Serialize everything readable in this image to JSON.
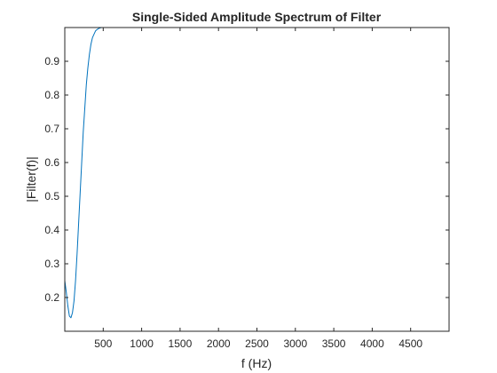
{
  "chart_data": {
    "type": "line",
    "title": "Single-Sided Amplitude Spectrum of Filter",
    "xlabel": "f (Hz)",
    "ylabel": "|Filter(f)|",
    "xlim": [
      0,
      5000
    ],
    "ylim": [
      0.1,
      1.0
    ],
    "xticks": [
      500,
      1000,
      1500,
      2000,
      2500,
      3000,
      3500,
      4000,
      4500
    ],
    "xtick_labels": [
      "500",
      "1000",
      "1500",
      "2000",
      "2500",
      "3000",
      "3500",
      "4000",
      "4500"
    ],
    "yticks": [
      0.2,
      0.3,
      0.4,
      0.5,
      0.6,
      0.7,
      0.8,
      0.9
    ],
    "ytick_labels": [
      "0.2",
      "0.3",
      "0.4",
      "0.5",
      "0.6",
      "0.7",
      "0.8",
      "0.9"
    ],
    "grid": false,
    "legend": "none",
    "colors": {
      "line": "#0072BD",
      "axes": "#262626"
    },
    "series": [
      {
        "x": [
          0,
          20,
          40,
          60,
          80,
          100,
          120,
          140,
          160,
          180,
          200,
          220,
          240,
          260,
          280,
          300,
          320,
          340,
          360,
          380,
          400,
          420,
          440,
          460,
          480,
          500,
          550,
          600,
          700,
          800,
          1000,
          1500,
          2000,
          2500,
          3000,
          3500,
          4000,
          4500,
          5000
        ],
        "y": [
          0.25,
          0.215,
          0.175,
          0.145,
          0.14,
          0.155,
          0.19,
          0.25,
          0.33,
          0.42,
          0.51,
          0.6,
          0.69,
          0.76,
          0.83,
          0.88,
          0.92,
          0.95,
          0.97,
          0.98,
          0.99,
          0.994,
          0.997,
          0.999,
          1.0,
          1.0,
          1.0,
          1.0,
          1.0,
          1.0,
          1.0,
          1.0,
          1.0,
          1.0,
          1.0,
          1.0,
          1.0,
          1.0,
          1.0
        ]
      }
    ]
  }
}
